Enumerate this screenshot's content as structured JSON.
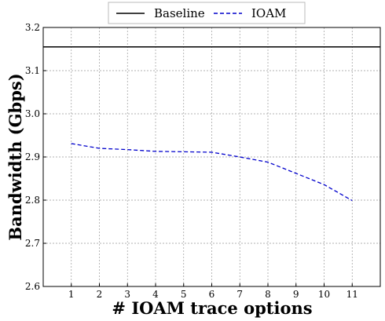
{
  "chart_data": {
    "type": "line",
    "title": "",
    "xlabel": "# IOAM trace options",
    "ylabel": "Bandwidth (Gbps)",
    "x": [
      1,
      2,
      3,
      4,
      5,
      6,
      7,
      8,
      9,
      10,
      11
    ],
    "xlim": [
      0,
      12
    ],
    "ylim": [
      2.6,
      3.2
    ],
    "xticks": [
      "1",
      "2",
      "3",
      "4",
      "5",
      "6",
      "7",
      "8",
      "9",
      "10",
      "11"
    ],
    "yticks": [
      "2.6",
      "2.7",
      "2.8",
      "2.9",
      "3.0",
      "3.1",
      "3.2"
    ],
    "grid": true,
    "legend_position": "top-center-outside",
    "series": [
      {
        "name": "Baseline",
        "color": "#000000",
        "style": "solid",
        "x": [
          0,
          12
        ],
        "values": [
          3.155,
          3.155
        ]
      },
      {
        "name": "IOAM",
        "color": "#0000cc",
        "style": "dashed",
        "x": [
          1,
          2,
          3,
          4,
          5,
          6,
          7,
          8,
          9,
          10,
          11
        ],
        "values": [
          2.931,
          2.92,
          2.917,
          2.913,
          2.912,
          2.911,
          2.9,
          2.888,
          2.862,
          2.836,
          2.799
        ]
      }
    ]
  }
}
